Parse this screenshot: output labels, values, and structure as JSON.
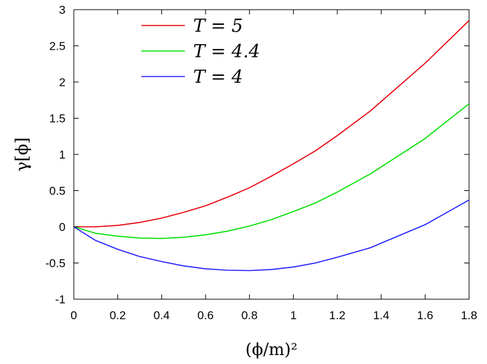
{
  "chart_data": {
    "type": "line",
    "title": "",
    "xlabel": "(ϕ/m)²",
    "ylabel": "γ[ϕ]",
    "xlim": [
      0,
      1.8
    ],
    "ylim": [
      -1,
      3
    ],
    "x_ticks": [
      "0",
      "0.2",
      "0.4",
      "0.6",
      "0.8",
      "1",
      "1.2",
      "1.4",
      "1.6",
      "1.8"
    ],
    "y_ticks": [
      "-1",
      "-0.5",
      "0",
      "0.5",
      "1",
      "1.5",
      "2",
      "2.5",
      "3"
    ],
    "grid": false,
    "legend_position": "top-left",
    "series": [
      {
        "name": "T = 5",
        "color": "#e8000a",
        "x": [
          0,
          0.1,
          0.2,
          0.3,
          0.4,
          0.5,
          0.6,
          0.7,
          0.8,
          0.9,
          1.0,
          1.1,
          1.2,
          1.35,
          1.6,
          1.8
        ],
        "y": [
          0,
          0.0,
          0.02,
          0.06,
          0.12,
          0.2,
          0.29,
          0.41,
          0.54,
          0.7,
          0.87,
          1.05,
          1.26,
          1.6,
          2.26,
          2.85
        ]
      },
      {
        "name": "T = 4.4",
        "color": "#00e000",
        "x": [
          0,
          0.1,
          0.2,
          0.3,
          0.4,
          0.5,
          0.6,
          0.7,
          0.8,
          0.9,
          1.0,
          1.1,
          1.2,
          1.35,
          1.6,
          1.8
        ],
        "y": [
          0,
          -0.09,
          -0.13,
          -0.155,
          -0.16,
          -0.145,
          -0.11,
          -0.06,
          0.01,
          0.1,
          0.21,
          0.33,
          0.48,
          0.73,
          1.22,
          1.7
        ]
      },
      {
        "name": "T = 4",
        "color": "#2020ff",
        "x": [
          0,
          0.1,
          0.2,
          0.3,
          0.4,
          0.5,
          0.6,
          0.7,
          0.8,
          0.9,
          1.0,
          1.1,
          1.2,
          1.35,
          1.6,
          1.8
        ],
        "y": [
          0,
          -0.19,
          -0.31,
          -0.41,
          -0.48,
          -0.54,
          -0.58,
          -0.6,
          -0.605,
          -0.59,
          -0.555,
          -0.5,
          -0.42,
          -0.29,
          0.03,
          0.37
        ]
      }
    ]
  }
}
